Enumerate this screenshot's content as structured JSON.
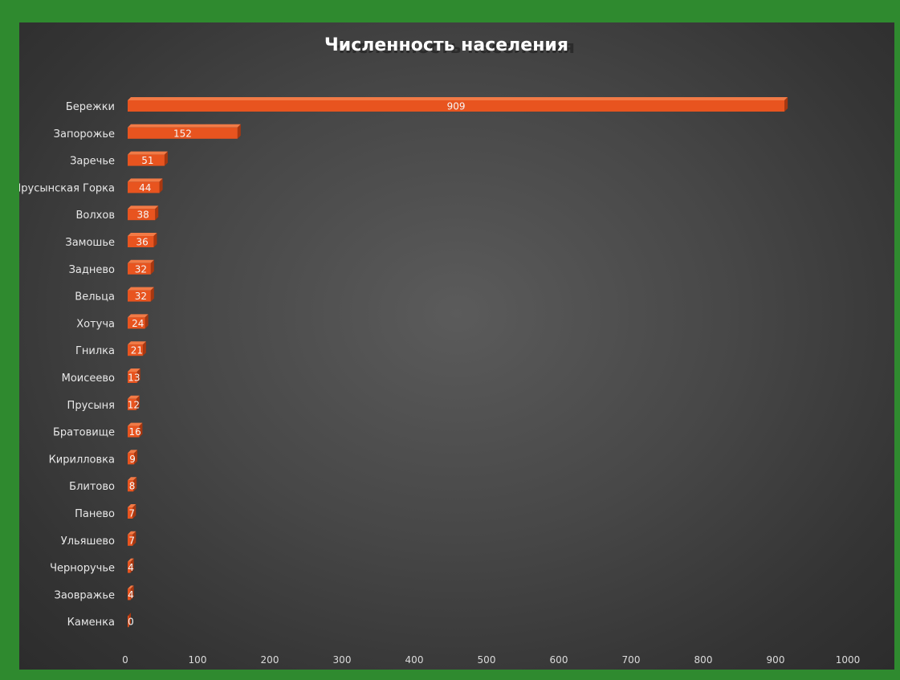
{
  "chart_data": {
    "type": "bar",
    "orientation": "horizontal",
    "title": "Численность населения",
    "categories": [
      "Бережки",
      "Запорожье",
      "Заречье",
      "Прусынская Горка",
      "Волхов",
      "Замошье",
      "Заднево",
      "Вельца",
      "Хотуча",
      "Гнилка",
      "Моисеево",
      "Прусыня",
      "Братовище",
      "Кирилловка",
      "Блитово",
      "Панево",
      "Ульяшево",
      "Черноручье",
      "Заовражье",
      "Каменка"
    ],
    "values": [
      909,
      152,
      51,
      44,
      38,
      36,
      32,
      32,
      24,
      21,
      13,
      12,
      16,
      9,
      8,
      7,
      7,
      4,
      4,
      0
    ],
    "xlim": [
      0,
      1000
    ],
    "xticks": [
      0,
      100,
      200,
      300,
      400,
      500,
      600,
      700,
      800,
      900,
      1000
    ],
    "grid": false,
    "legend": "none",
    "colors": {
      "bar_front": "#e8541f",
      "bar_top": "#f27a46",
      "bar_side": "#a83710",
      "frame": "#2f8a2f",
      "background_center": "#5b5b5b",
      "background_edge": "#2c2c2c"
    }
  }
}
